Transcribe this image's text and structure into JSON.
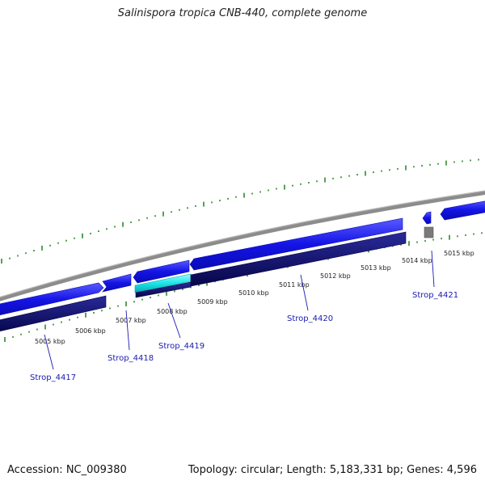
{
  "title": "Salinispora tropica CNB-440, complete genome",
  "footer": {
    "accession": "Accession: NC_009380",
    "summary": "Topology: circular; Length: 5,183,331 bp; Genes: 4,596"
  },
  "ticks": [
    "5005 kbp",
    "5006 kbp",
    "5007 kbp",
    "5008 kbp",
    "5009 kbp",
    "5010 kbp",
    "5011 kbp",
    "5012 kbp",
    "5013 kbp",
    "5014 kbp",
    "5015 kbp"
  ],
  "genes": [
    "Strop_4417",
    "Strop_4418",
    "Strop_4419",
    "Strop_4420",
    "Strop_4421"
  ],
  "colors": {
    "backbone": "#8c8c8c",
    "forward_gene": "#1414e6",
    "reverse_gene": "#0a0a6e",
    "highlight_gene": "#19e6e6",
    "pseudo_gene": "#7a7a7a",
    "gc_ticks": "#2a8a2a",
    "gene_label": "#1a1ab0"
  }
}
